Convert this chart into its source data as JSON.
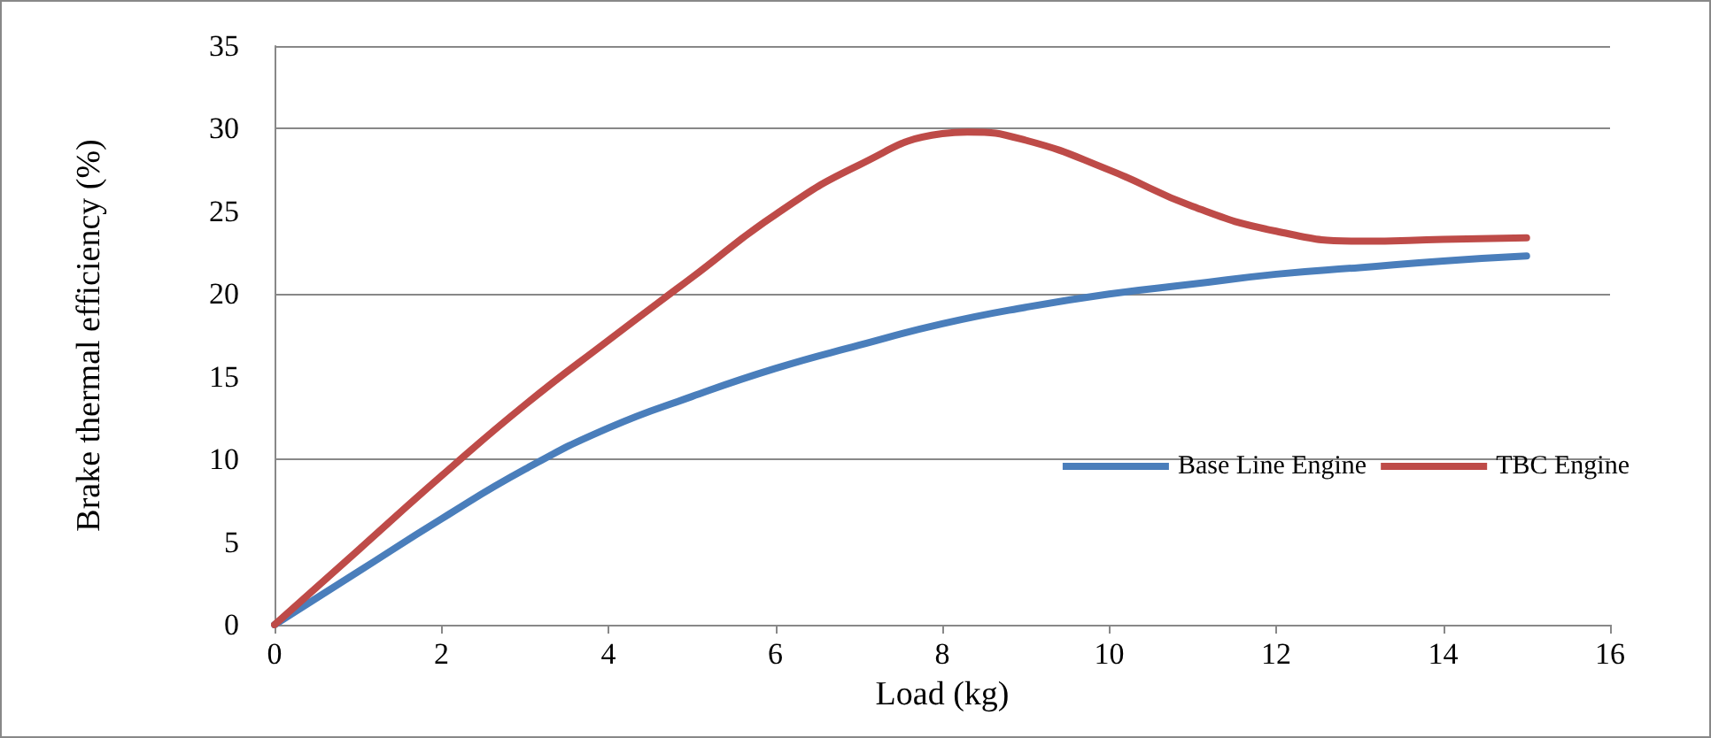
{
  "chart_data": {
    "type": "line",
    "xlabel": "Load (kg)",
    "ylabel": "Brake thermal efficiency (%)",
    "xlim": [
      0,
      16
    ],
    "xticks": [
      0,
      2,
      4,
      6,
      8,
      10,
      12,
      14,
      16
    ],
    "ylim": [
      0,
      35
    ],
    "yticks": [
      0,
      5,
      10,
      15,
      20,
      25,
      30,
      35
    ],
    "grid": "y",
    "legend": "right",
    "marker": "none",
    "line_style": "solid",
    "series": [
      {
        "name": "Base Line Engine",
        "color": "#4a7ebb",
        "x": [
          0,
          1,
          2,
          3,
          4,
          5,
          6,
          7,
          8,
          9,
          10,
          11,
          12,
          13,
          14,
          15
        ],
        "values": [
          0,
          3.2,
          6.4,
          9.4,
          11.9,
          13.8,
          15.5,
          16.9,
          18.2,
          19.2,
          20,
          20.6,
          21.2,
          21.6,
          22,
          22.3
        ]
      },
      {
        "name": "TBC Engine",
        "color": "#be4b48",
        "x": [
          0,
          1,
          2,
          3,
          4,
          5,
          6,
          7,
          8,
          8.3,
          9,
          10,
          11,
          12,
          13,
          14,
          15
        ],
        "values": [
          0,
          4.5,
          9,
          13.3,
          17.2,
          21,
          24.8,
          27.8,
          29.7,
          29.8,
          29.3,
          27.5,
          25.3,
          23.8,
          23.2,
          23.3,
          23.4
        ]
      }
    ]
  }
}
